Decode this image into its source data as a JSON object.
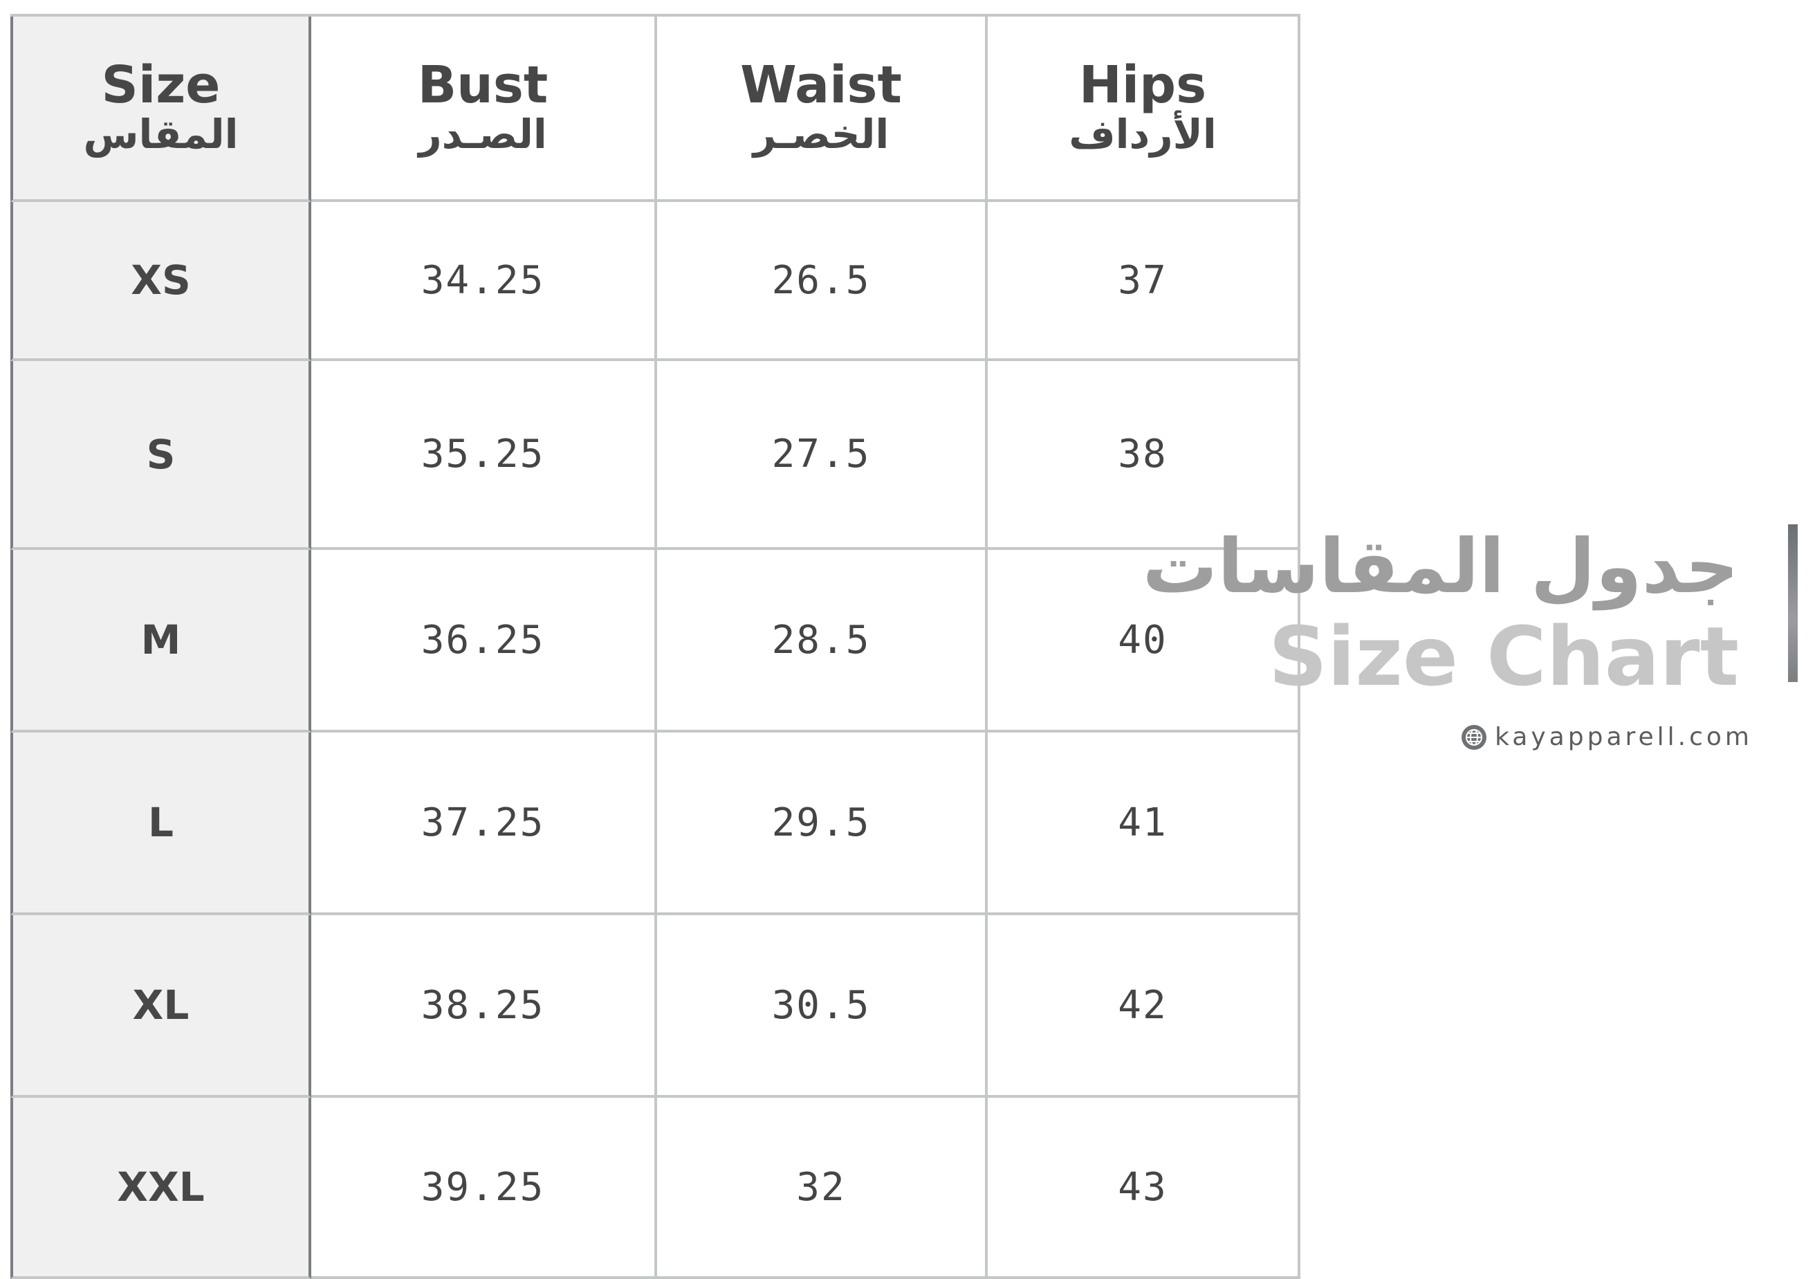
{
  "table": {
    "headers": [
      {
        "en": "Size",
        "ar": "المقاس"
      },
      {
        "en": "Bust",
        "ar": "الصـدر"
      },
      {
        "en": "Waist",
        "ar": "الخصـر"
      },
      {
        "en": "Hips",
        "ar": "الأرداف"
      }
    ],
    "rows": [
      {
        "size": "XS",
        "bust": "34.25",
        "waist": "26.5",
        "hips": "37"
      },
      {
        "size": "S",
        "bust": "35.25",
        "waist": "27.5",
        "hips": "38"
      },
      {
        "size": "M",
        "bust": "36.25",
        "waist": "28.5",
        "hips": "40"
      },
      {
        "size": "L",
        "bust": "37.25",
        "waist": "29.5",
        "hips": "41"
      },
      {
        "size": "XL",
        "bust": "38.25",
        "waist": "30.5",
        "hips": "42"
      },
      {
        "size": "XXL",
        "bust": "39.25",
        "waist": "32",
        "hips": "43"
      }
    ]
  },
  "title": {
    "ar": "جدول المقاسات",
    "en": "Size Chart"
  },
  "website": {
    "icon": "globe-icon",
    "text": "kayapparell.com"
  },
  "colors": {
    "header_text": "#474747",
    "size_column_bg": "#f0f0f0",
    "grid": "#c4c7c7",
    "title_en": "#c6c6c6",
    "title_ar": "#9e9e9e"
  }
}
